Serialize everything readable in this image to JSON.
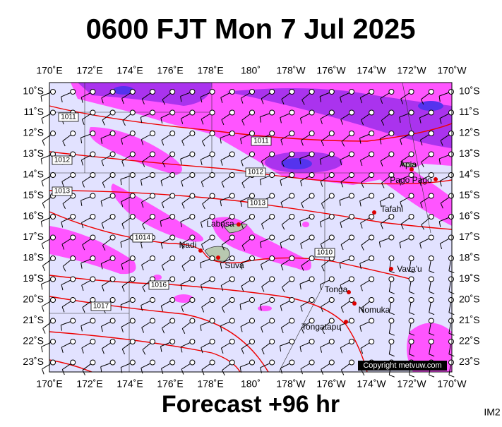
{
  "header": {
    "title": "0600 FJT Mon 7 Jul 2025"
  },
  "lon_labels": [
    "170˚E",
    "172˚E",
    "174˚E",
    "176˚E",
    "178˚E",
    "180˚",
    "178˚W",
    "176˚W",
    "174˚W",
    "172˚W",
    "170˚W"
  ],
  "lat_labels": [
    "10˚S",
    "11˚S",
    "12˚S",
    "13˚S",
    "14˚S",
    "15˚S",
    "16˚S",
    "17˚S",
    "18˚S",
    "19˚S",
    "20˚S",
    "21˚S",
    "22˚S",
    "23˚S"
  ],
  "isobar_labels": [
    1011,
    1011,
    1012,
    1012,
    1013,
    1013,
    1014,
    1010,
    1016,
    1017
  ],
  "places": [
    "Apia",
    "Pago Pago",
    "Tafahi",
    "Labasa",
    "Nadi",
    "Suva",
    "Vava'u",
    "Tonga",
    "Nomuka",
    "Tongatapu"
  ],
  "footer": {
    "forecast": "Forecast +96 hr",
    "code": "IM2",
    "copyright": "Copyright metvuw.com"
  }
}
